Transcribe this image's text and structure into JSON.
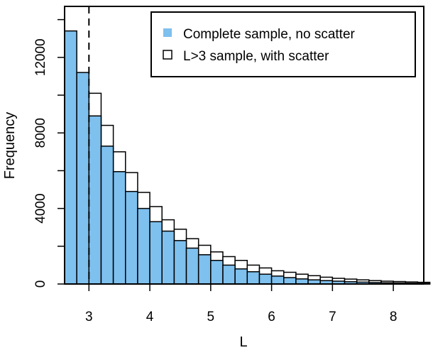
{
  "chart_data": {
    "type": "bar",
    "title": "",
    "xlabel": "L",
    "ylabel": "Frequency",
    "xlim": [
      2.6,
      8.5
    ],
    "ylim": [
      0,
      14700
    ],
    "x_ticks": [
      "3",
      "4",
      "5",
      "6",
      "7",
      "8"
    ],
    "y_ticks": [
      "0",
      "4000",
      "8000",
      "12000"
    ],
    "y_minor_ticks": [
      2000,
      6000,
      10000,
      14000
    ],
    "bin_width": 0.2,
    "vline_x": 3.0,
    "legend_position": "top-right",
    "series": [
      {
        "name": "Complete sample, no scatter",
        "color": "#7ec0ee",
        "bins": [
          {
            "x0": 2.6,
            "value": 13400
          },
          {
            "x0": 2.8,
            "value": 11200
          },
          {
            "x0": 3.0,
            "value": 8900
          },
          {
            "x0": 3.2,
            "value": 7300
          },
          {
            "x0": 3.4,
            "value": 5950
          },
          {
            "x0": 3.6,
            "value": 4900
          },
          {
            "x0": 3.8,
            "value": 4000
          },
          {
            "x0": 4.0,
            "value": 3300
          },
          {
            "x0": 4.2,
            "value": 2800
          },
          {
            "x0": 4.4,
            "value": 2300
          },
          {
            "x0": 4.6,
            "value": 1900
          },
          {
            "x0": 4.8,
            "value": 1550
          },
          {
            "x0": 5.0,
            "value": 1250
          },
          {
            "x0": 5.2,
            "value": 1000
          },
          {
            "x0": 5.4,
            "value": 800
          },
          {
            "x0": 5.6,
            "value": 650
          },
          {
            "x0": 5.8,
            "value": 520
          },
          {
            "x0": 6.0,
            "value": 420
          },
          {
            "x0": 6.2,
            "value": 340
          },
          {
            "x0": 6.4,
            "value": 270
          },
          {
            "x0": 6.6,
            "value": 220
          },
          {
            "x0": 6.8,
            "value": 180
          },
          {
            "x0": 7.0,
            "value": 150
          },
          {
            "x0": 7.2,
            "value": 120
          },
          {
            "x0": 7.4,
            "value": 100
          },
          {
            "x0": 7.6,
            "value": 80
          },
          {
            "x0": 7.8,
            "value": 65
          },
          {
            "x0": 8.0,
            "value": 55
          },
          {
            "x0": 8.2,
            "value": 45
          },
          {
            "x0": 8.4,
            "value": 35
          }
        ]
      },
      {
        "name": "L>3 sample, with scatter",
        "color": "#ffffff",
        "bins": [
          {
            "x0": 3.0,
            "value": 10100
          },
          {
            "x0": 3.2,
            "value": 8400
          },
          {
            "x0": 3.4,
            "value": 7000
          },
          {
            "x0": 3.6,
            "value": 5900
          },
          {
            "x0": 3.8,
            "value": 4850
          },
          {
            "x0": 4.0,
            "value": 4100
          },
          {
            "x0": 4.2,
            "value": 3400
          },
          {
            "x0": 4.4,
            "value": 2900
          },
          {
            "x0": 4.6,
            "value": 2400
          },
          {
            "x0": 4.8,
            "value": 2050
          },
          {
            "x0": 5.0,
            "value": 1700
          },
          {
            "x0": 5.2,
            "value": 1450
          },
          {
            "x0": 5.4,
            "value": 1250
          },
          {
            "x0": 5.6,
            "value": 1000
          },
          {
            "x0": 5.8,
            "value": 850
          },
          {
            "x0": 6.0,
            "value": 700
          },
          {
            "x0": 6.2,
            "value": 620
          },
          {
            "x0": 6.4,
            "value": 520
          },
          {
            "x0": 6.6,
            "value": 440
          },
          {
            "x0": 6.8,
            "value": 360
          },
          {
            "x0": 7.0,
            "value": 300
          },
          {
            "x0": 7.2,
            "value": 260
          },
          {
            "x0": 7.4,
            "value": 220
          },
          {
            "x0": 7.6,
            "value": 180
          },
          {
            "x0": 7.8,
            "value": 150
          },
          {
            "x0": 8.0,
            "value": 130
          },
          {
            "x0": 8.2,
            "value": 110
          },
          {
            "x0": 8.4,
            "value": 90
          }
        ]
      }
    ]
  }
}
